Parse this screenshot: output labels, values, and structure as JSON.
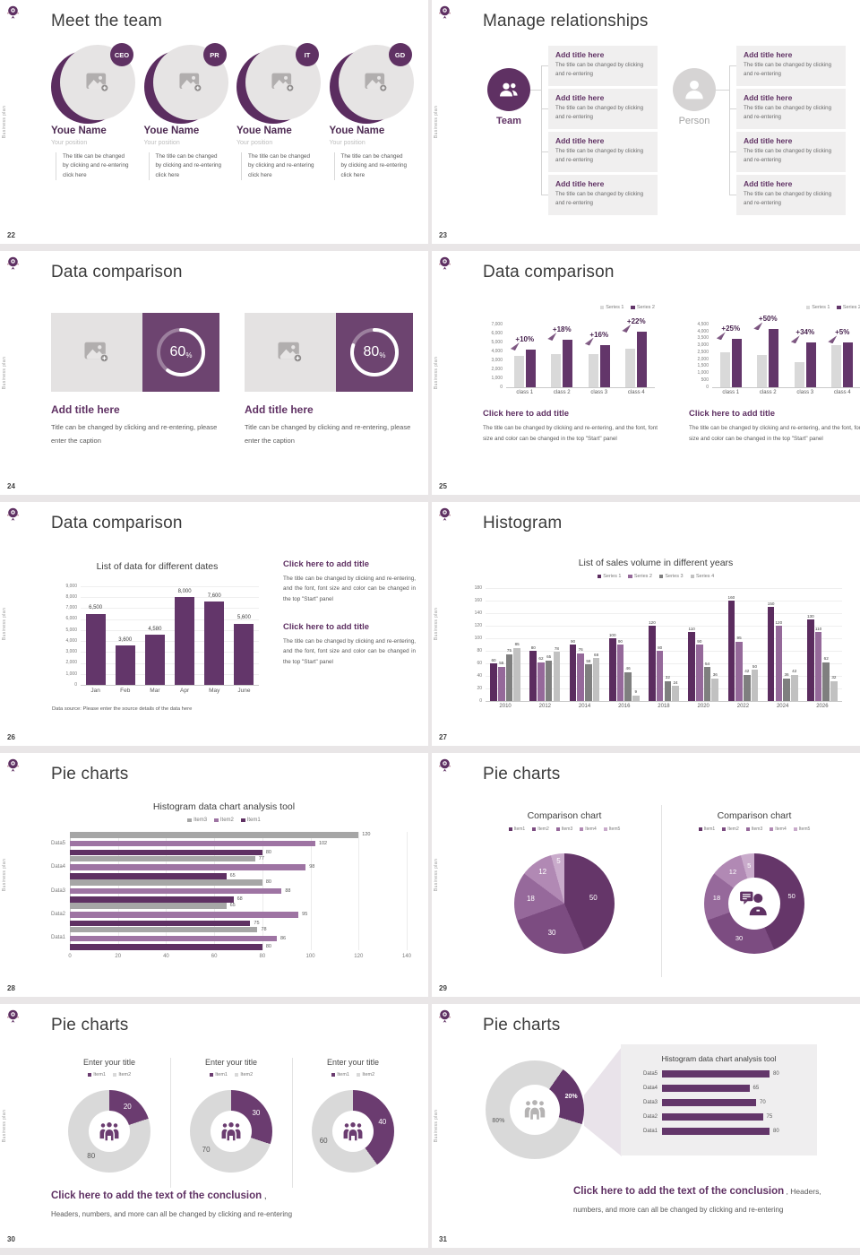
{
  "page": {
    "background": "#e9e6e7",
    "slide_background": "#ffffff"
  },
  "common": {
    "sidebar_text": "Business plan",
    "logo_icon": "brand-crest-icon",
    "accent_purple_dark": "#5f3163",
    "accent_purple": "#6b3c70",
    "accent_grey": "#d9d9d9"
  },
  "slides": {
    "s22": {
      "number": "22",
      "title": "Meet the team",
      "member_desc": "The title can be changed\nby clicking and re-entering\nclick here",
      "members": [
        {
          "badge": "CEO",
          "name": "Youe Name",
          "position": "Your position"
        },
        {
          "badge": "PR",
          "name": "Youe Name",
          "position": "Your position"
        },
        {
          "badge": "IT",
          "name": "Youe Name",
          "position": "Your position"
        },
        {
          "badge": "GD",
          "name": "Youe Name",
          "position": "Your position"
        }
      ]
    },
    "s23": {
      "number": "23",
      "title": "Manage relationships",
      "left_label": "Team",
      "right_label": "Person",
      "box_title": "Add title here",
      "box_body": "The title can be changed by clicking and re-entering",
      "left_box_count": 4,
      "right_box_count": 4
    },
    "s24": {
      "number": "24",
      "title": "Data comparison",
      "cards": [
        {
          "percent": "60",
          "title": "Add title here",
          "body": "Title can be changed by clicking and re-entering, please enter the caption"
        },
        {
          "percent": "80",
          "title": "Add title here",
          "body": "Title can be changed by clicking and re-entering, please enter the caption"
        }
      ]
    },
    "s25": {
      "number": "25",
      "title": "Data comparison",
      "blocks": [
        {
          "title": "Click here to add title",
          "body": "The title can be changed by clicking and re-entering, and the font, font size and color can be changed in the top \"Start\" panel"
        },
        {
          "title": "Click here to add title",
          "body": "The title can be changed by clicking and re-entering, and the font, font size and color can be changed in the top \"Start\" panel"
        }
      ]
    },
    "s26": {
      "number": "26",
      "title": "Data comparison",
      "blocks": [
        {
          "title": "Click here to add title",
          "body": "The title can be changed by clicking and re-entering, and the font, font size and color can be changed in the top \"Start\" panel"
        },
        {
          "title": "Click here to add title",
          "body": "The title can be changed by clicking and re-entering, and the font, font size and color can be changed in the top \"Start\" panel"
        }
      ]
    },
    "s27": {
      "number": "27",
      "title": "Histogram"
    },
    "s28": {
      "number": "28",
      "title": "Pie charts"
    },
    "s29": {
      "number": "29",
      "title": "Pie charts"
    },
    "s30": {
      "number": "30",
      "title": "Pie charts",
      "conclusion": {
        "title": "Click here to add the text of the conclusion",
        "suffix": " ,",
        "body": "Headers, numbers, and more can all be changed by clicking and re-entering"
      }
    },
    "s31": {
      "number": "31",
      "title": "Pie charts",
      "conclusion": {
        "title": "Click here to add the text of the conclusion",
        "suffix": " , Headers,",
        "body": "numbers, and more can all be changed by clicking and re-entering"
      }
    }
  },
  "chart_data": {
    "c24_rings": {
      "type": "donut",
      "percents": [
        60,
        80
      ],
      "ring_color": "#ffffff",
      "panel_color": "#6d4470"
    },
    "c25_left": {
      "type": "bar",
      "categories": [
        "class 1",
        "class 2",
        "class 3",
        "class 4"
      ],
      "series": [
        {
          "name": "Series 1",
          "color": "#d9d9d9",
          "values": [
            3500,
            3750,
            3700,
            4350
          ]
        },
        {
          "name": "Series 2",
          "color": "#63366a",
          "values": [
            4200,
            5300,
            4750,
            6200
          ]
        }
      ],
      "growth_labels": [
        "+10%",
        "+18%",
        "+16%",
        "+22%"
      ],
      "ylim": [
        0,
        7000
      ],
      "ystep": 1000,
      "legend_position": "top-right"
    },
    "c25_right": {
      "type": "bar",
      "categories": [
        "class 1",
        "class 2",
        "class 3",
        "class 4"
      ],
      "series": [
        {
          "name": "Series 1",
          "color": "#d9d9d9",
          "values": [
            2500,
            2300,
            1800,
            3050
          ]
        },
        {
          "name": "Series 2",
          "color": "#63366a",
          "values": [
            3450,
            4150,
            3200,
            3200
          ]
        }
      ],
      "growth_labels": [
        "+25%",
        "+50%",
        "+34%",
        "+5%"
      ],
      "ylim": [
        0,
        4500
      ],
      "ystep": 500,
      "legend_position": "top-right"
    },
    "c26": {
      "type": "bar",
      "title": "List of data for different dates",
      "categories": [
        "Jan",
        "Feb",
        "Mar",
        "Apr",
        "May",
        "June"
      ],
      "series": [
        {
          "name": "Data",
          "color": "#63366a",
          "values": [
            6500,
            3600,
            4580,
            8000,
            7600,
            5600
          ]
        }
      ],
      "data_labels": [
        "6,500",
        "3,600",
        "4,580",
        "8,000",
        "7,600",
        "5,600"
      ],
      "ylim": [
        0,
        9000
      ],
      "ystep": 1000,
      "grid": true,
      "footnote": "Data source: Please enter the source details of the data here"
    },
    "c27": {
      "type": "bar",
      "title": "List of sales volume in different years",
      "categories": [
        "2010",
        "2012",
        "2014",
        "2016",
        "2018",
        "2020",
        "2022",
        "2024",
        "2026"
      ],
      "series": [
        {
          "name": "Series 1",
          "color": "#5b2c5f",
          "values": [
            60,
            80,
            90,
            100,
            120,
            110,
            160,
            150,
            130
          ]
        },
        {
          "name": "Series 2",
          "color": "#95699a",
          "values": [
            55,
            62,
            76,
            90,
            80,
            90,
            95,
            120,
            110
          ]
        },
        {
          "name": "Series 3",
          "color": "#7f7f7f",
          "values": [
            75,
            65,
            58,
            46,
            32,
            54,
            42,
            36,
            62
          ]
        },
        {
          "name": "Series 4",
          "color": "#c1c1c1",
          "values": [
            85,
            78,
            68,
            9,
            24,
            36,
            50,
            42,
            32
          ]
        }
      ],
      "ylim": [
        0,
        180
      ],
      "ystep": 20,
      "grid": true,
      "show_data_labels": true,
      "legend_position": "top-center"
    },
    "c28": {
      "type": "hbar",
      "title": "Histogram data chart analysis tool",
      "categories": [
        "Data5",
        "Data4",
        "Data3",
        "Data2",
        "Data1"
      ],
      "series": [
        {
          "name": "Item3",
          "color": "#a6a6a6",
          "values": [
            120,
            77,
            80,
            65,
            78
          ]
        },
        {
          "name": "Item2",
          "color": "#9e74a3",
          "values": [
            102,
            98,
            88,
            95,
            86
          ]
        },
        {
          "name": "Item1",
          "color": "#5f3163",
          "values": [
            80,
            65,
            68,
            75,
            80
          ]
        }
      ],
      "xlim": [
        0,
        140
      ],
      "xstep": 20,
      "grid": true,
      "show_data_labels": true,
      "legend_position": "top-center"
    },
    "c29_left": {
      "type": "pie",
      "title": "Comparison chart",
      "legend": [
        "Item1",
        "Item2",
        "Item3",
        "Item4",
        "Item5"
      ],
      "values": [
        50,
        30,
        18,
        12,
        5
      ],
      "colors": [
        "#653669",
        "#7c4c81",
        "#96699b",
        "#b189b4",
        "#c9abcb"
      ]
    },
    "c29_right": {
      "type": "donut",
      "title": "Comparison chart",
      "legend": [
        "Item1",
        "Item2",
        "Item3",
        "Item4",
        "Item5"
      ],
      "values": [
        50,
        30,
        18,
        12,
        5
      ],
      "colors": [
        "#653669",
        "#7c4c81",
        "#96699b",
        "#b189b4",
        "#c9abcb"
      ],
      "center_icon": "consultant-icon"
    },
    "c30": [
      {
        "type": "donut",
        "title": "Enter your title",
        "legend": [
          "Item1",
          "Item2"
        ],
        "values": [
          20,
          80
        ],
        "colors": [
          "#6b3c70",
          "#d9d9d9"
        ],
        "center_icon": "team-group-icon"
      },
      {
        "type": "donut",
        "title": "Enter your title",
        "legend": [
          "Item1",
          "Item2"
        ],
        "values": [
          30,
          70
        ],
        "colors": [
          "#6b3c70",
          "#d9d9d9"
        ],
        "center_icon": "team-group-icon"
      },
      {
        "type": "donut",
        "title": "Enter your title",
        "legend": [
          "Item1",
          "Item2"
        ],
        "values": [
          40,
          60
        ],
        "colors": [
          "#6b3c70",
          "#d9d9d9"
        ],
        "center_icon": "team-group-icon"
      }
    ],
    "c31_donut": {
      "type": "donut",
      "values": [
        20,
        80
      ],
      "slice_labels": [
        "20%",
        "80%"
      ],
      "colors": [
        "#63366a",
        "#d9d9d9"
      ],
      "center_icon": "team-group-icon",
      "start_angle": 35
    },
    "c31_bars": {
      "type": "hbar",
      "title": "Histogram data chart analysis tool",
      "categories": [
        "Data5",
        "Data4",
        "Data3",
        "Data2",
        "Data1"
      ],
      "values": [
        80,
        65,
        70,
        75,
        80
      ],
      "color": "#63366a",
      "xmax": 100
    }
  }
}
